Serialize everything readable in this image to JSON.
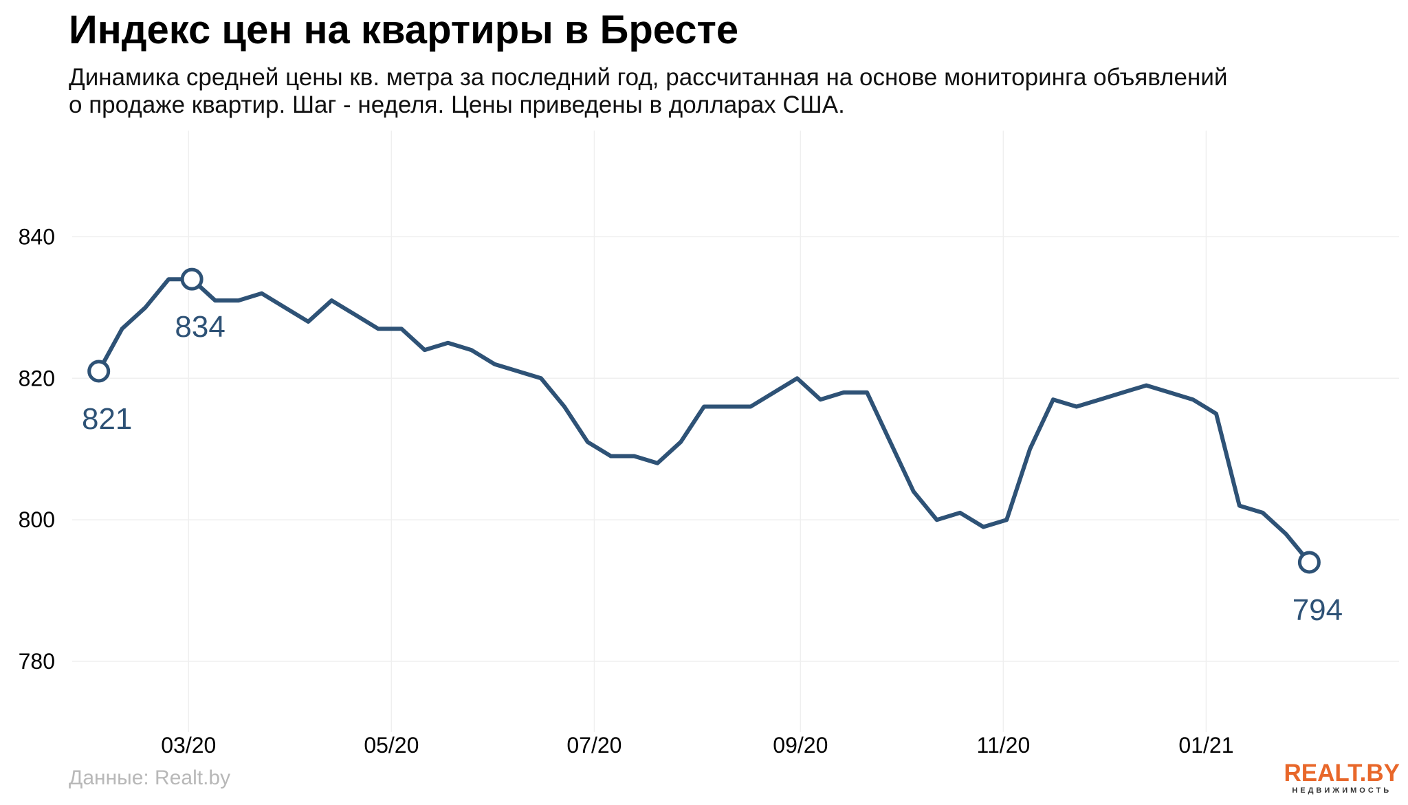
{
  "header": {
    "title": "Индекс цен на квартиры в Бресте",
    "subtitle": "Динамика средней цены кв. метра за последний год, рассчитанная на основе мониторинга объявлений о продаже квартир. Шаг - неделя. Цены приведены в долларах США."
  },
  "footer": {
    "source": "Данные: Realt.by",
    "logo_main": "REALT.BY",
    "logo_sub": "НЕДВИЖИМОСТЬ"
  },
  "colors": {
    "line": "#2e5276",
    "grid": "#efefef",
    "logo": "#e8672a"
  },
  "chart_data": {
    "type": "line",
    "title": "Индекс цен на квартиры в Бресте",
    "xlabel": "",
    "ylabel": "",
    "ylim": [
      770,
      855
    ],
    "xlim": [
      "2020-01-26",
      "2021-02-28"
    ],
    "y_ticks": [
      780,
      800,
      820,
      840
    ],
    "x_ticks": [
      {
        "date": "2020-03-01",
        "label": "03/20"
      },
      {
        "date": "2020-05-01",
        "label": "05/20"
      },
      {
        "date": "2020-07-01",
        "label": "07/20"
      },
      {
        "date": "2020-09-01",
        "label": "09/20"
      },
      {
        "date": "2020-11-01",
        "label": "11/20"
      },
      {
        "date": "2021-01-01",
        "label": "01/21"
      }
    ],
    "grid": true,
    "series": [
      {
        "x": [
          "2020-02-03",
          "2020-02-10",
          "2020-02-17",
          "2020-02-24",
          "2020-03-02",
          "2020-03-09",
          "2020-03-16",
          "2020-03-23",
          "2020-03-30",
          "2020-04-06",
          "2020-04-13",
          "2020-04-20",
          "2020-04-27",
          "2020-05-04",
          "2020-05-11",
          "2020-05-18",
          "2020-05-25",
          "2020-06-01",
          "2020-06-08",
          "2020-06-15",
          "2020-06-22",
          "2020-06-29",
          "2020-07-06",
          "2020-07-13",
          "2020-07-20",
          "2020-07-27",
          "2020-08-03",
          "2020-08-10",
          "2020-08-17",
          "2020-08-24",
          "2020-08-31",
          "2020-09-07",
          "2020-09-14",
          "2020-09-21",
          "2020-09-28",
          "2020-10-05",
          "2020-10-12",
          "2020-10-19",
          "2020-10-26",
          "2020-11-02",
          "2020-11-09",
          "2020-11-16",
          "2020-11-23",
          "2020-11-30",
          "2020-12-07",
          "2020-12-14",
          "2020-12-21",
          "2020-12-28",
          "2021-01-04",
          "2021-01-11",
          "2021-01-18",
          "2021-01-25",
          "2021-02-01"
        ],
        "values": [
          821,
          827,
          830,
          834,
          834,
          831,
          831,
          832,
          830,
          828,
          831,
          829,
          827,
          827,
          824,
          825,
          824,
          822,
          821,
          820,
          816,
          811,
          809,
          809,
          808,
          811,
          816,
          816,
          816,
          818,
          820,
          817,
          818,
          818,
          811,
          804,
          800,
          801,
          799,
          800,
          810,
          817,
          816,
          817,
          818,
          819,
          818,
          817,
          815,
          802,
          801,
          798,
          794
        ]
      }
    ],
    "annotations": [
      {
        "x": "2020-02-03",
        "y": 821,
        "label": "821"
      },
      {
        "x": "2020-03-02",
        "y": 834,
        "label": "834"
      },
      {
        "x": "2021-02-01",
        "y": 794,
        "label": "794"
      }
    ]
  }
}
